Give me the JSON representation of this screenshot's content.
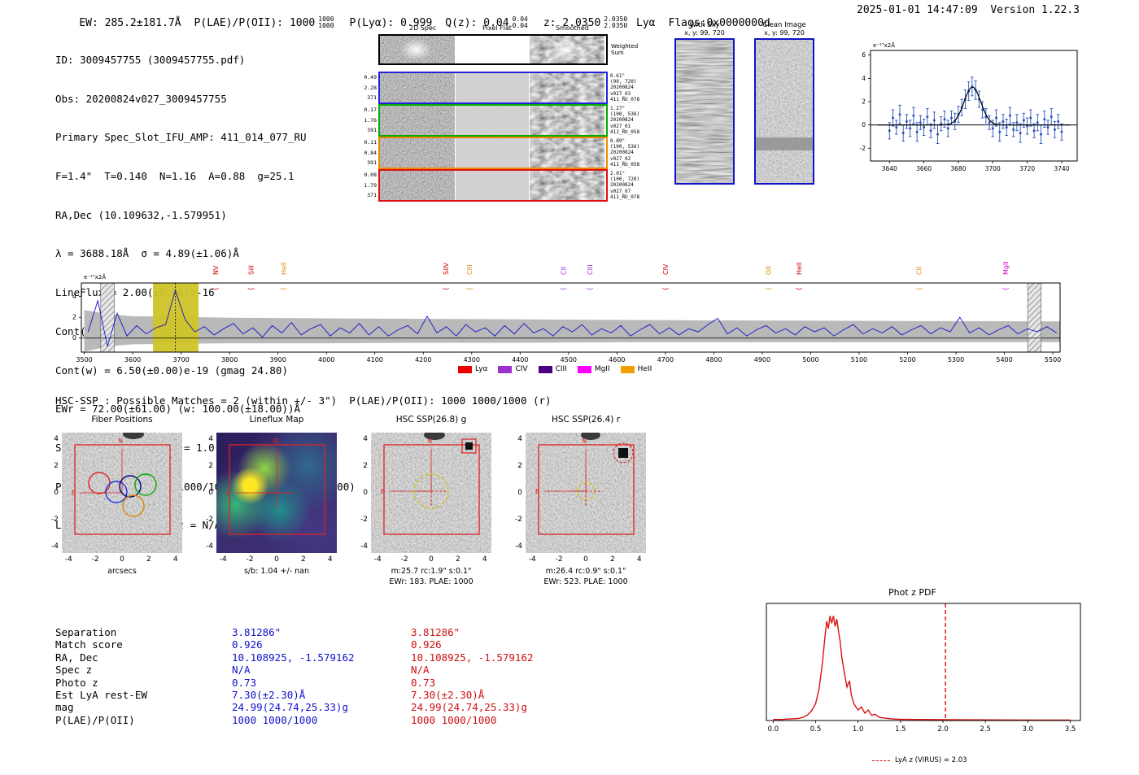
{
  "header": {
    "ew": "EW: 285.2±181.7Å",
    "plae_label": "P(LAE)/P(OII): 1000",
    "plae_sup": "1000",
    "plae_sub": "1000",
    "plya": "P(Lyα): 0.999",
    "qz": "Q(z): 0.04",
    "qz_sup": "0.04",
    "qz_sub": "0.04",
    "z": "z: 2.0350",
    "z_sup": "2.0350",
    "z_sub": "2.0350",
    "lya": " Lyα",
    "flags": "Flags:0x0000000d",
    "right": "2025-01-01 14:47:09  Version 1.22.3"
  },
  "info": {
    "lines": [
      "ID: 3009457755 (3009457755.pdf)",
      "Obs: 20200824v027_3009457755",
      "Primary Spec_Slot_IFU_AMP: 411_014_077_RU",
      "F=1.4\"  T=0.140  N=1.16  A=0.88  g=25.1",
      "RA,Dec (10.109632,-1.579951)",
      "λ = 3688.18Å  σ = 4.89(±1.06)Å",
      "LineFlux = 2.00(±0.36)e-16",
      "Cont(n) = 9.00(±7.50)e-19",
      "Cont(w) = 6.50(±0.00)e-19 (gmag 24.80)",
      "EWr = 72.00(±61.00) (w: 100.00(±18.00))Å",
      "S/N = 5.3(±0.6)   χ² = 1.0(±0.2)",
      "P(LAE)/P(OII): 1000 1000/1000 (w: 1000 1000/1000)",
      "LyA z = 2.0339  OII z = N/A"
    ]
  },
  "spec2d": {
    "col_titles": [
      "2D Spec",
      "Pixel Flat",
      "Smoothed"
    ],
    "weighted_label": "Weighted Sum",
    "rows": [
      {
        "left": [
          "0.49",
          "2.28",
          "371"
        ],
        "color": "#2222dd",
        "note": [
          "0.61\"",
          "(99, 720)",
          "20200824",
          "v027_03",
          "411_RU_078"
        ]
      },
      {
        "left": [
          "0.17",
          "1.76",
          "391"
        ],
        "color": "#00aa00",
        "note": [
          "1.27\"",
          "(100, 536)",
          "20200824",
          "v027_01",
          "411_RU_058"
        ]
      },
      {
        "left": [
          "0.11",
          "0.84",
          "391"
        ],
        "color": "#ee8800",
        "note": [
          "0.89\"",
          "(100, 536)",
          "20200824",
          "v027_02",
          "411_RU_058"
        ]
      },
      {
        "left": [
          "0.08",
          "1.79",
          "371"
        ],
        "color": "#dd1111",
        "note": [
          "2.01\"",
          "(100, 720)",
          "20200824",
          "v027_07",
          "411_RU_078"
        ]
      }
    ]
  },
  "sky_panels": [
    {
      "title": "With Sky",
      "subtitle": "x, y: 99, 720"
    },
    {
      "title": "Clean Image",
      "subtitle": "x, y: 99, 720"
    }
  ],
  "hsc_line": {
    "text": "HSC-SSP : Possible Matches = 2 (within +/- 3\")  P(LAE)/P(OII): 1000 1000/1000 (r)"
  },
  "cutouts": {
    "y_ticks": [
      "4",
      "2",
      "0",
      "-2",
      "-4"
    ],
    "x_ticks": [
      "-4",
      "-2",
      "0",
      "2",
      "4"
    ],
    "panels": [
      {
        "title": "Fiber Positions",
        "xlabel": "arcsecs",
        "caption": ""
      },
      {
        "title": "Lineflux Map",
        "xlabel": "s/b: 1.04 +/- nan",
        "caption": ""
      },
      {
        "title": "HSC SSP(26.8) g",
        "xlabel": "m:25.7 rc:1.9\" s:0.1\"",
        "caption": "EWr: 183. PLAE: 1000"
      },
      {
        "title": "HSC SSP(26.4) r",
        "xlabel": "m:26.4 rc:0.9\" s:0.1\"",
        "caption": "EWr: 523. PLAE: 1000"
      }
    ]
  },
  "match_table": {
    "labels": [
      "Separation",
      "Match score",
      "RA, Dec",
      "Spec z",
      "Photo z",
      "Est LyA rest-EW",
      "mag",
      "P(LAE)/P(OII)"
    ],
    "col1": [
      "3.81286\"",
      "0.926",
      "10.108925, -1.579162",
      "N/A",
      "0.73",
      "7.30(±2.30)Å",
      "24.99(24.74,25.33)g",
      "1000 1000/1000"
    ],
    "col2": [
      "3.81286\"",
      "0.926",
      "10.108925, -1.579162",
      "N/A",
      "0.73",
      "7.30(±2.30)Å",
      "24.99(24.74,25.33)g",
      "1000 1000/1000"
    ],
    "col1_color": "#1111cc",
    "col2_color": "#cc1111"
  },
  "chart_data": [
    {
      "name": "zoom_spectrum",
      "type": "scatter",
      "ylabel": "e⁻¹⁷x2Å",
      "xlim": [
        3629,
        3749
      ],
      "ylim": [
        -3.1,
        6.4
      ],
      "x_ticks": [
        3640,
        3660,
        3680,
        3700,
        3720,
        3740
      ],
      "y_ticks": [
        -2,
        0,
        2,
        4,
        6
      ],
      "points": [
        [
          3640,
          -0.5,
          0.7
        ],
        [
          3642,
          0.6,
          0.7
        ],
        [
          3644,
          -0.2,
          0.6
        ],
        [
          3646,
          0.9,
          0.8
        ],
        [
          3648,
          -0.7,
          0.7
        ],
        [
          3650,
          0.3,
          0.6
        ],
        [
          3652,
          -0.3,
          0.7
        ],
        [
          3654,
          0.8,
          0.7
        ],
        [
          3656,
          -0.6,
          0.8
        ],
        [
          3658,
          0.2,
          0.6
        ],
        [
          3660,
          -0.2,
          0.7
        ],
        [
          3662,
          0.7,
          0.7
        ],
        [
          3664,
          -0.5,
          0.6
        ],
        [
          3666,
          0.4,
          0.7
        ],
        [
          3668,
          -0.8,
          0.8
        ],
        [
          3670,
          0.1,
          0.6
        ],
        [
          3672,
          0.5,
          0.7
        ],
        [
          3674,
          -0.3,
          0.7
        ],
        [
          3676,
          0.6,
          0.6
        ],
        [
          3678,
          0.3,
          0.7
        ],
        [
          3680,
          0.9,
          0.7
        ],
        [
          3682,
          1.5,
          0.7
        ],
        [
          3684,
          2.2,
          0.8
        ],
        [
          3686,
          2.9,
          0.8
        ],
        [
          3688,
          3.3,
          0.8
        ],
        [
          3690,
          3.0,
          0.8
        ],
        [
          3692,
          2.2,
          0.7
        ],
        [
          3694,
          1.3,
          0.7
        ],
        [
          3696,
          0.7,
          0.7
        ],
        [
          3698,
          0.2,
          0.6
        ],
        [
          3700,
          -0.3,
          0.7
        ],
        [
          3702,
          0.6,
          0.7
        ],
        [
          3704,
          -0.6,
          0.8
        ],
        [
          3706,
          0.3,
          0.6
        ],
        [
          3708,
          -0.2,
          0.7
        ],
        [
          3710,
          0.8,
          0.7
        ],
        [
          3712,
          -0.4,
          0.6
        ],
        [
          3714,
          0.2,
          0.7
        ],
        [
          3716,
          -0.7,
          0.8
        ],
        [
          3718,
          0.4,
          0.6
        ],
        [
          3720,
          -0.1,
          0.7
        ],
        [
          3722,
          0.6,
          0.7
        ],
        [
          3724,
          -0.5,
          0.6
        ],
        [
          3726,
          0.2,
          0.7
        ],
        [
          3728,
          -0.8,
          0.8
        ],
        [
          3730,
          0.5,
          0.7
        ],
        [
          3732,
          -0.2,
          0.6
        ],
        [
          3734,
          0.7,
          0.7
        ],
        [
          3736,
          -0.4,
          0.7
        ],
        [
          3738,
          0.3,
          0.6
        ],
        [
          3740,
          -0.6,
          0.7
        ]
      ],
      "fit": {
        "type": "gaussian",
        "amplitude": 3.25,
        "center": 3688.18,
        "sigma": 4.89,
        "baseline": 0.0
      }
    },
    {
      "name": "main_spectrum",
      "type": "line",
      "ylabel": "e⁻¹⁷x2Å",
      "xlim": [
        3494,
        5515
      ],
      "ylim": [
        -1.35,
        5.3
      ],
      "x_ticks": [
        3500,
        3600,
        3700,
        3800,
        3900,
        4000,
        4100,
        4200,
        4300,
        4400,
        4500,
        4600,
        4700,
        4800,
        4900,
        5000,
        5100,
        5200,
        5300,
        5400,
        5500
      ],
      "y_ticks": [
        0,
        2,
        4
      ],
      "wl_start": 3508,
      "wl_step": 20,
      "flux": [
        0.6,
        3.6,
        -0.8,
        2.4,
        0.2,
        1.2,
        0.4,
        1.0,
        1.3,
        4.6,
        1.8,
        0.6,
        1.1,
        0.3,
        0.9,
        1.4,
        0.4,
        1.0,
        0.1,
        1.2,
        0.5,
        1.5,
        0.3,
        0.9,
        1.3,
        0.2,
        1.0,
        0.5,
        1.4,
        0.3,
        1.1,
        0.2,
        0.8,
        1.2,
        0.4,
        2.1,
        0.5,
        1.1,
        0.2,
        1.3,
        0.6,
        1.0,
        0.2,
        1.2,
        0.4,
        1.4,
        0.5,
        0.9,
        0.2,
        1.1,
        0.6,
        1.3,
        0.3,
        0.9,
        0.5,
        1.2,
        0.2,
        0.8,
        1.3,
        0.4,
        1.0,
        0.3,
        0.9,
        0.6,
        1.3,
        1.9,
        0.4,
        1.0,
        0.2,
        0.8,
        1.2,
        0.5,
        0.9,
        0.3,
        1.1,
        0.6,
        1.0,
        0.2,
        0.8,
        1.3,
        0.4,
        0.9,
        0.5,
        1.1,
        0.3,
        0.8,
        1.2,
        0.4,
        1.0,
        0.6,
        2.0,
        0.5,
        1.0,
        0.3,
        0.8,
        1.2,
        0.4,
        0.9,
        0.6,
        1.1,
        0.5
      ],
      "envelope": {
        "wl": [
          3500,
          3550,
          3600,
          3700,
          3800,
          4000,
          4200,
          4400,
          4600,
          4800,
          5000,
          5200,
          5400,
          5515
        ],
        "upper": [
          2.7,
          2.3,
          2.1,
          2.05,
          1.95,
          1.9,
          1.85,
          1.8,
          1.75,
          1.7,
          1.68,
          1.65,
          1.62,
          1.6
        ],
        "lower": [
          -1.3,
          -0.8,
          -0.6,
          -0.55,
          -0.5,
          -0.5,
          -0.45,
          -0.45,
          -0.4,
          -0.4,
          -0.4,
          -0.4,
          -0.38,
          -0.38
        ]
      },
      "highlight_band": [
        3642,
        3736
      ],
      "hatch_bands": [
        [
          3534,
          3562
        ],
        [
          5448,
          5476
        ]
      ],
      "peak_line": 3688.18,
      "line_labels": [
        {
          "label": "NV",
          "wl": 3773,
          "color": "#cc0000"
        },
        {
          "label": "SiII",
          "wl": 3846,
          "color": "#cc0000"
        },
        {
          "label": "HeII",
          "wl": 3913,
          "color": "#e08800"
        },
        {
          "label": "SiIV",
          "wl": 4248,
          "color": "#cc0000"
        },
        {
          "label": "CIII",
          "wl": 4297,
          "color": "#e08800"
        },
        {
          "label": "CII",
          "wl": 4491,
          "color": "#9933cc"
        },
        {
          "label": "CIII",
          "wl": 4546,
          "color": "#9933cc"
        },
        {
          "label": "CIV",
          "wl": 4702,
          "color": "#cc0000"
        },
        {
          "label": "OII",
          "wl": 4914,
          "color": "#e08800"
        },
        {
          "label": "HeII",
          "wl": 4977,
          "color": "#cc0000"
        },
        {
          "label": "CII",
          "wl": 5225,
          "color": "#e08800"
        },
        {
          "label": "MgII",
          "wl": 5404,
          "color": "#cc00cc"
        }
      ],
      "legend": [
        {
          "label": "Lyα",
          "color": "#ee0000"
        },
        {
          "label": "CIV",
          "color": "#9933cc"
        },
        {
          "label": "CIII",
          "color": "#4b0082"
        },
        {
          "label": "MgII",
          "color": "#ff00ff"
        },
        {
          "label": "HeII",
          "color": "#f0a000"
        }
      ]
    },
    {
      "name": "photz_pdf",
      "type": "line",
      "title": "Phot z PDF",
      "xlim": [
        -0.08,
        3.62
      ],
      "ylim": [
        0,
        1.12
      ],
      "x_ticks": [
        0.0,
        0.5,
        1.0,
        1.5,
        2.0,
        2.5,
        3.0,
        3.5
      ],
      "x": [
        0.0,
        0.1,
        0.2,
        0.3,
        0.35,
        0.4,
        0.45,
        0.5,
        0.54,
        0.58,
        0.61,
        0.63,
        0.65,
        0.67,
        0.69,
        0.71,
        0.73,
        0.75,
        0.77,
        0.79,
        0.81,
        0.84,
        0.87,
        0.9,
        0.92,
        0.95,
        1.0,
        1.04,
        1.08,
        1.12,
        1.16,
        1.2,
        1.25,
        1.3,
        1.4,
        1.5,
        1.7,
        2.0,
        2.5,
        3.0,
        3.5
      ],
      "y": [
        0.01,
        0.01,
        0.015,
        0.02,
        0.03,
        0.05,
        0.09,
        0.16,
        0.3,
        0.55,
        0.8,
        0.95,
        0.88,
        1.0,
        0.93,
        1.0,
        0.9,
        0.97,
        0.85,
        0.75,
        0.6,
        0.45,
        0.32,
        0.38,
        0.25,
        0.16,
        0.1,
        0.13,
        0.07,
        0.1,
        0.05,
        0.06,
        0.03,
        0.025,
        0.015,
        0.012,
        0.01,
        0.008,
        0.006,
        0.005,
        0.005
      ],
      "vline": {
        "x": 2.03,
        "label": "LyA z (VIRUS) = 2.03",
        "color": "#dd1111"
      }
    }
  ]
}
